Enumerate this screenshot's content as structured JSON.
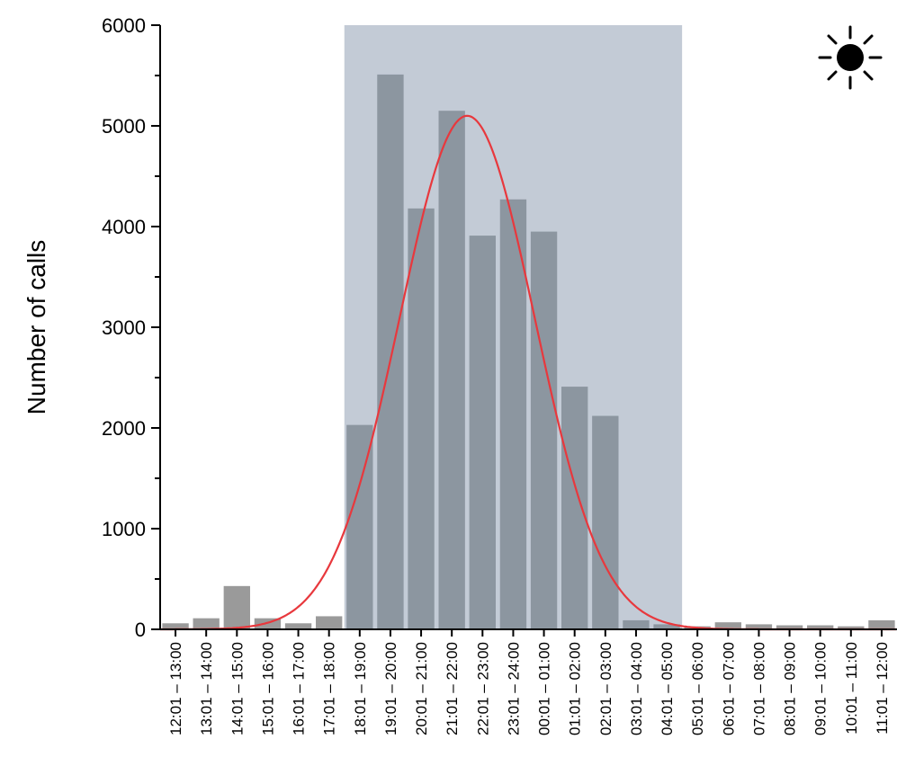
{
  "chart_data": {
    "type": "bar",
    "title": "",
    "xlabel": "",
    "ylabel": "Number of calls",
    "ylim": [
      0,
      6000
    ],
    "yticks": [
      0,
      1000,
      2000,
      3000,
      4000,
      5000,
      6000
    ],
    "grid": false,
    "categories": [
      "12:01 – 13:00",
      "13:01 – 14:00",
      "14:01 – 15:00",
      "15:01 – 16:00",
      "16:01 – 17:00",
      "17:01 – 18:00",
      "18:01 – 19:00",
      "19:01 – 20:00",
      "20:01 – 21:00",
      "21:01 – 22:00",
      "22:01 – 23:00",
      "23:01 – 24:00",
      "00:01 – 01:00",
      "01:01 – 02:00",
      "02:01 – 03:00",
      "03:01 – 04:00",
      "04:01 – 05:00",
      "05:01 – 06:00",
      "06:01 – 07:00",
      "07:01 – 08:00",
      "08:01 – 09:00",
      "09:01 – 10:00",
      "10:01 – 11:00",
      "11:01 – 12:00"
    ],
    "values": [
      60,
      110,
      430,
      110,
      60,
      130,
      2030,
      5510,
      4180,
      5150,
      3910,
      4270,
      3950,
      2410,
      2120,
      90,
      50,
      30,
      70,
      50,
      40,
      40,
      30,
      90
    ],
    "night_period": {
      "from_category": "18:01 – 19:00",
      "to_category": "04:01 – 05:00"
    },
    "fit_curve": {
      "type": "gaussian",
      "peak": 5100,
      "center_category_index": 9.5,
      "sigma_categories": 2.2
    },
    "colors": {
      "bar": "#8c96a0",
      "bar_outside": "#9a9a9a",
      "night_shade": "#c3cbd6",
      "fit_line": "#e8383d",
      "icons": "#000000"
    },
    "icons": {
      "night": "moon-icon",
      "day": "sun-icon"
    }
  }
}
